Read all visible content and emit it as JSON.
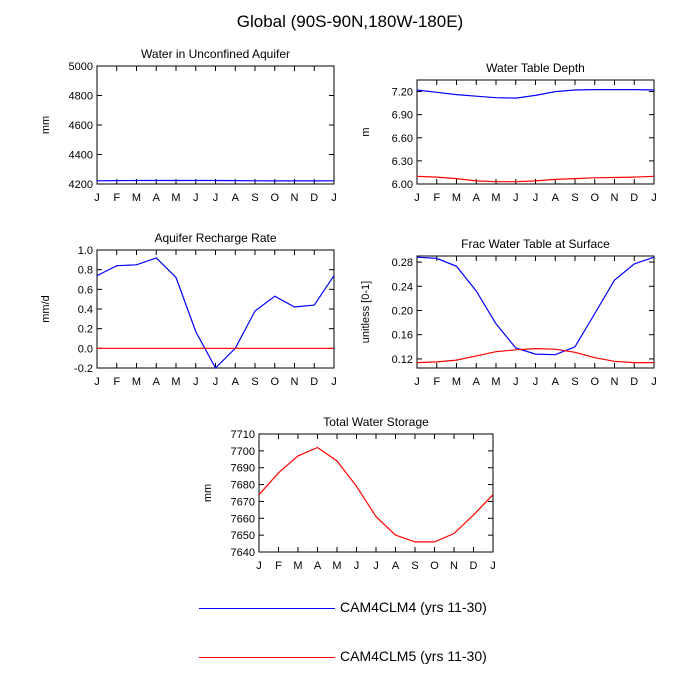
{
  "title": "Global (90S-90N,180W-180E)",
  "months": [
    "J",
    "F",
    "M",
    "A",
    "M",
    "J",
    "J",
    "A",
    "S",
    "O",
    "N",
    "D",
    "J"
  ],
  "legend": [
    {
      "label": "CAM4CLM4 (yrs 11-30)",
      "color": "#0000ff"
    },
    {
      "label": "CAM4CLM5 (yrs 11-30)",
      "color": "#ff0000"
    }
  ],
  "chart_data": [
    {
      "type": "line",
      "title": "Water in Unconfined Aquifer",
      "ylabel": "mm",
      "ylim": [
        4200,
        5000
      ],
      "yticks": [
        4200,
        4400,
        4600,
        4800,
        5000
      ],
      "ytick_labels": [
        "4200",
        "4400",
        "4600",
        "4800",
        "5000"
      ],
      "series": [
        {
          "name": "CAM4CLM4 (yrs 11-30)",
          "color": "#0000ff",
          "values": [
            4222,
            4223,
            4224,
            4224,
            4224,
            4224,
            4224,
            4223,
            4222,
            4221,
            4221,
            4221,
            4222
          ]
        }
      ]
    },
    {
      "type": "line",
      "title": "Water Table Depth",
      "ylabel": "m",
      "ylim": [
        6.0,
        7.35
      ],
      "yticks": [
        6.0,
        6.3,
        6.6,
        6.9,
        7.2
      ],
      "ytick_labels": [
        "6.00",
        "6.30",
        "6.60",
        "6.90",
        "7.20"
      ],
      "series": [
        {
          "name": "CAM4CLM4 (yrs 11-30)",
          "color": "#0000ff",
          "values": [
            7.22,
            7.19,
            7.16,
            7.14,
            7.12,
            7.115,
            7.15,
            7.2,
            7.22,
            7.225,
            7.225,
            7.225,
            7.22
          ]
        },
        {
          "name": "CAM4CLM5 (yrs 11-30)",
          "color": "#ff0000",
          "values": [
            6.1,
            6.09,
            6.07,
            6.04,
            6.03,
            6.03,
            6.04,
            6.06,
            6.07,
            6.08,
            6.085,
            6.09,
            6.1
          ]
        }
      ]
    },
    {
      "type": "line",
      "title": "Aquifer Recharge Rate",
      "ylabel": "mm/d",
      "ylim": [
        -0.2,
        1.0
      ],
      "yticks": [
        -0.2,
        0.0,
        0.2,
        0.4,
        0.6,
        0.8,
        1.0
      ],
      "ytick_labels": [
        "-0.2",
        "0.0",
        "0.2",
        "0.4",
        "0.6",
        "0.8",
        "1.0"
      ],
      "series": [
        {
          "name": "CAM4CLM4 (yrs 11-30)",
          "color": "#0000ff",
          "values": [
            0.74,
            0.84,
            0.85,
            0.92,
            0.72,
            0.17,
            -0.2,
            0.0,
            0.38,
            0.53,
            0.42,
            0.44,
            0.74
          ]
        },
        {
          "name": "CAM4CLM5 (yrs 11-30)",
          "color": "#ff0000",
          "values": [
            0.0,
            0.0,
            0.0,
            0.0,
            0.0,
            0.0,
            0.0,
            0.0,
            0.0,
            0.0,
            0.0,
            0.0,
            0.0
          ]
        }
      ]
    },
    {
      "type": "line",
      "title": "Frac Water Table at Surface",
      "ylabel": "unitless [0-1]",
      "ylim": [
        0.105,
        0.29
      ],
      "yticks": [
        0.12,
        0.16,
        0.2,
        0.24,
        0.28
      ],
      "ytick_labels": [
        "0.12",
        "0.16",
        "0.20",
        "0.24",
        "0.28"
      ],
      "series": [
        {
          "name": "CAM4CLM4 (yrs 11-30)",
          "color": "#0000ff",
          "values": [
            0.288,
            0.286,
            0.273,
            0.232,
            0.178,
            0.138,
            0.128,
            0.127,
            0.14,
            0.195,
            0.25,
            0.277,
            0.288
          ]
        },
        {
          "name": "CAM4CLM5 (yrs 11-30)",
          "color": "#ff0000",
          "values": [
            0.114,
            0.115,
            0.118,
            0.125,
            0.132,
            0.135,
            0.137,
            0.136,
            0.131,
            0.122,
            0.116,
            0.114,
            0.114
          ]
        }
      ]
    },
    {
      "type": "line",
      "title": "Total Water Storage",
      "ylabel": "mm",
      "ylim": [
        7640,
        7710
      ],
      "yticks": [
        7640,
        7650,
        7660,
        7670,
        7680,
        7690,
        7700,
        7710
      ],
      "ytick_labels": [
        "7640",
        "7650",
        "7660",
        "7670",
        "7680",
        "7690",
        "7700",
        "7710"
      ],
      "series": [
        {
          "name": "CAM4CLM5 (yrs 11-30)",
          "color": "#ff0000",
          "values": [
            7674,
            7687,
            7697,
            7702,
            7694,
            7679,
            7661,
            7650,
            7646,
            7646,
            7651,
            7662,
            7674
          ]
        }
      ]
    }
  ]
}
